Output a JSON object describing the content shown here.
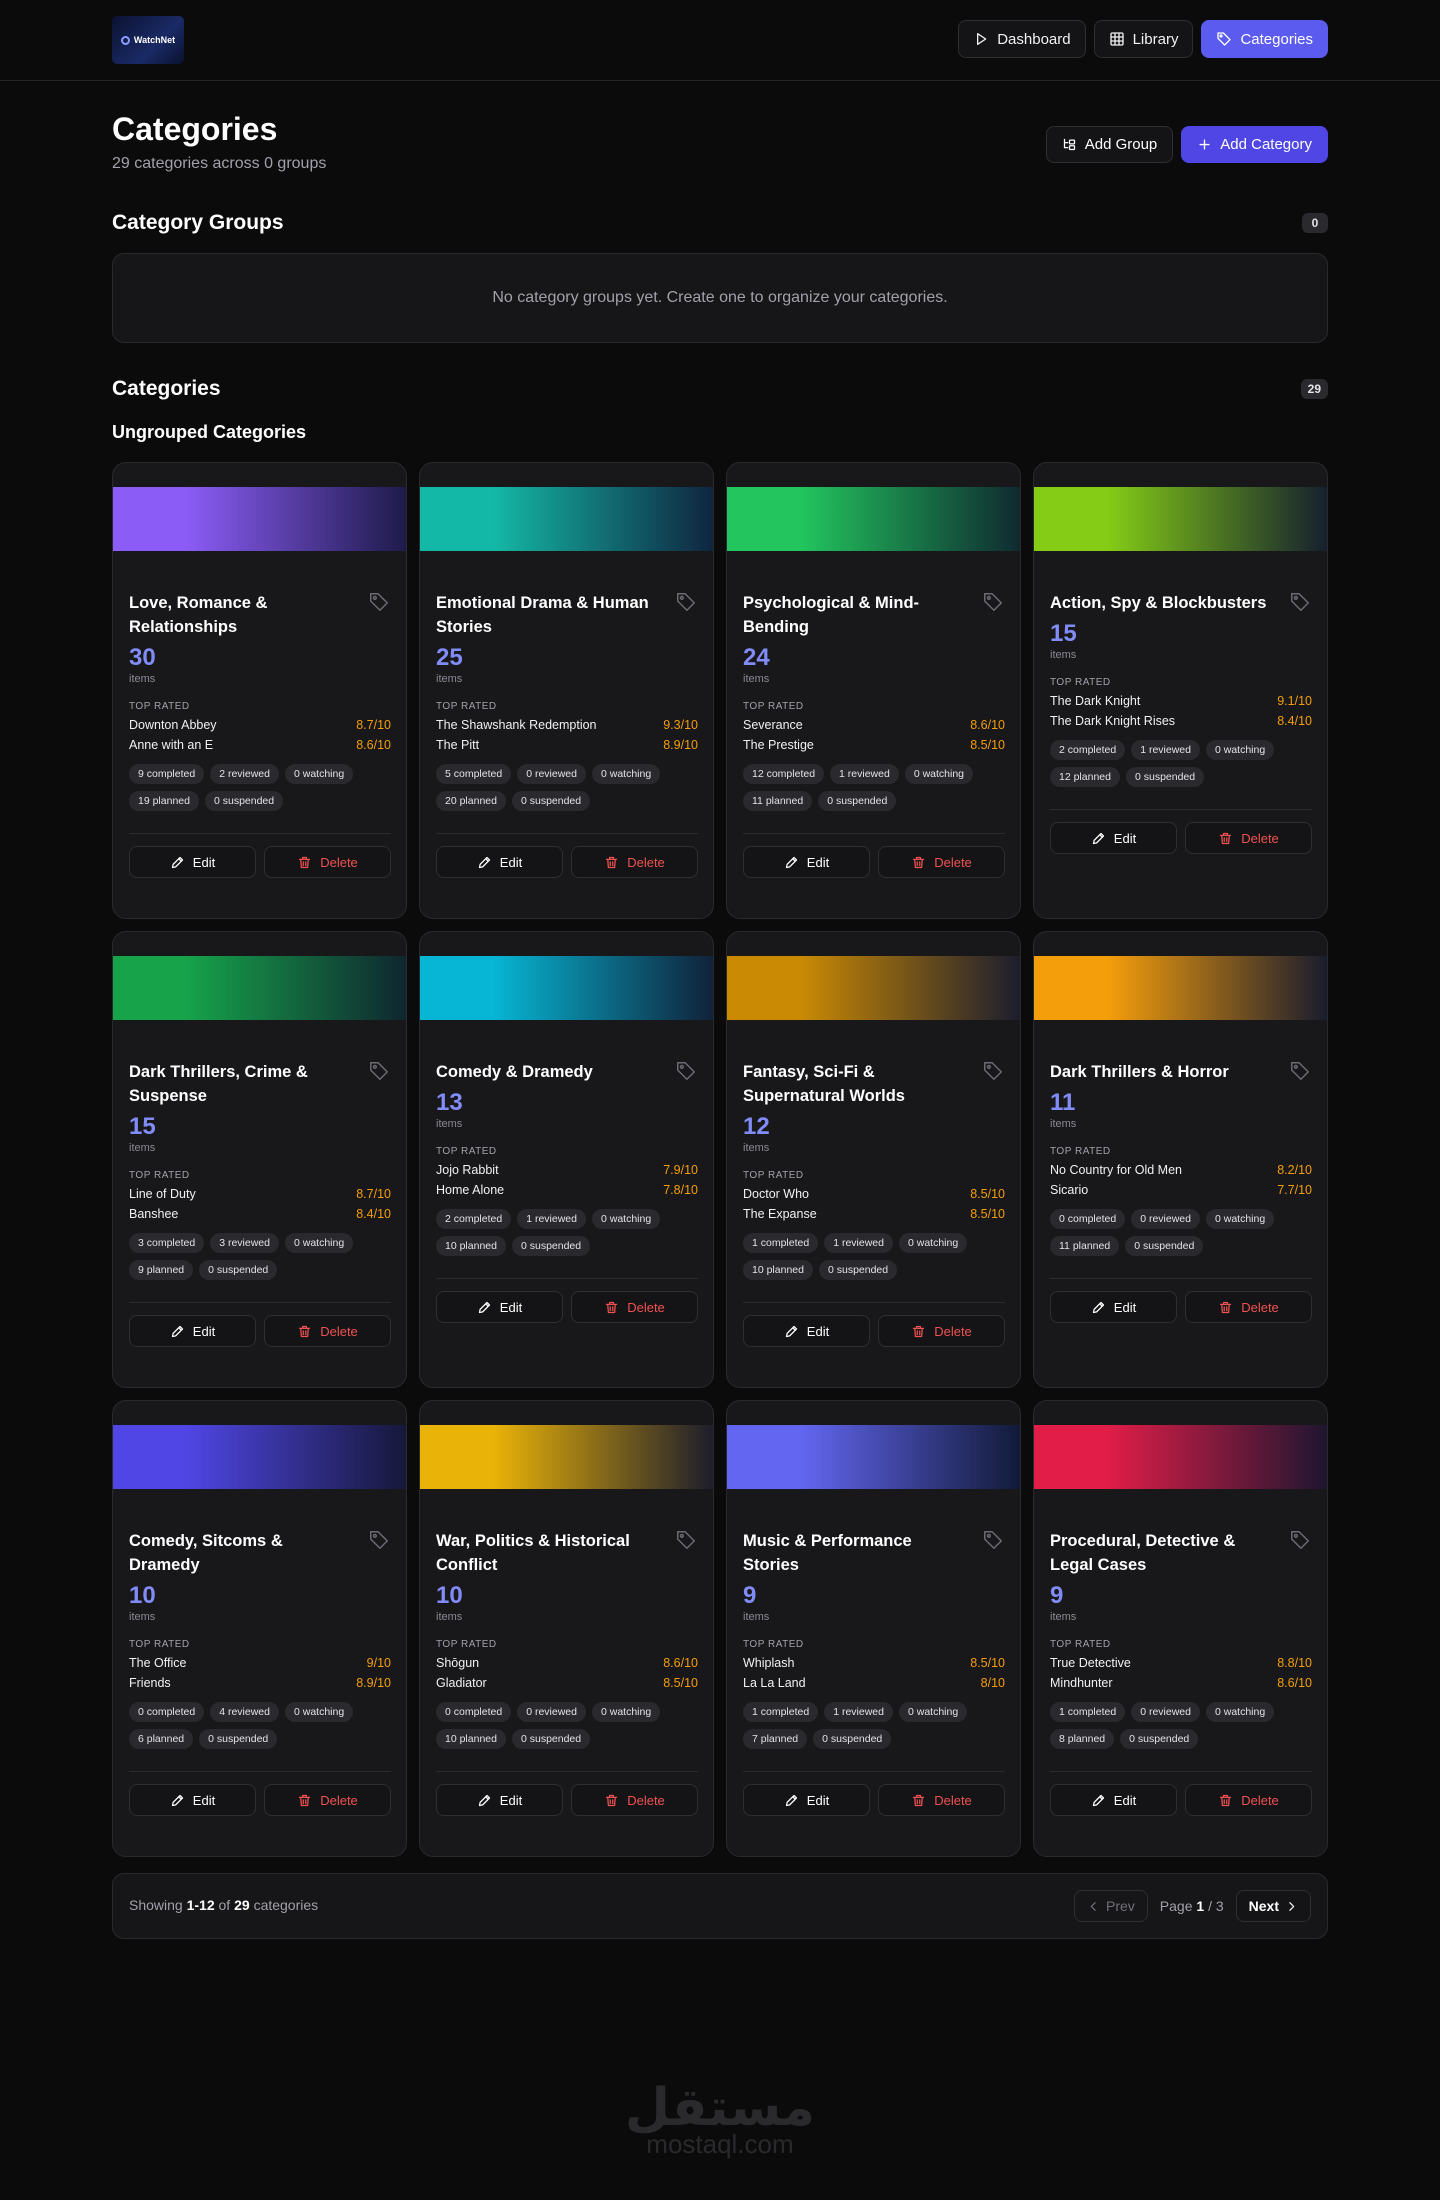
{
  "header": {
    "logo_text": "WatchNet",
    "nav": [
      {
        "label": "Dashboard",
        "icon": "play-icon",
        "active": false
      },
      {
        "label": "Library",
        "icon": "grid-icon",
        "active": false
      },
      {
        "label": "Categories",
        "icon": "tag-icon",
        "active": true
      }
    ]
  },
  "page": {
    "title": "Categories",
    "subtitle": "29 categories across 0 groups",
    "add_group_label": "Add Group",
    "add_category_label": "Add Category"
  },
  "groups": {
    "title": "Category Groups",
    "count": "0",
    "empty_text": "No category groups yet. Create one to organize your categories."
  },
  "categories": {
    "title": "Categories",
    "count": "29",
    "ungrouped_title": "Ungrouped Categories",
    "items_label": "items",
    "top_rated_label": "TOP RATED",
    "edit_label": "Edit",
    "delete_label": "Delete",
    "cards": [
      {
        "name": "Love, Romance & Relationships",
        "count": "30",
        "gradient": [
          "#8b5cf6",
          "#1e1b4b"
        ],
        "top": [
          {
            "title": "Downton Abbey",
            "rating": "8.7/10"
          },
          {
            "title": "Anne with an E",
            "rating": "8.6/10"
          }
        ],
        "badges": [
          "9 completed",
          "2 reviewed",
          "0 watching",
          "19 planned",
          "0 suspended"
        ]
      },
      {
        "name": "Emotional Drama & Human Stories",
        "count": "25",
        "gradient": [
          "#14b8a6",
          "#0f2540"
        ],
        "top": [
          {
            "title": "The Shawshank Redemption",
            "rating": "9.3/10"
          },
          {
            "title": "The Pitt",
            "rating": "8.9/10"
          }
        ],
        "badges": [
          "5 completed",
          "0 reviewed",
          "0 watching",
          "20 planned",
          "0 suspended"
        ]
      },
      {
        "name": "Psychological & Mind-Bending",
        "count": "24",
        "gradient": [
          "#22c55e",
          "#0f2a30"
        ],
        "top": [
          {
            "title": "Severance",
            "rating": "8.6/10"
          },
          {
            "title": "The Prestige",
            "rating": "8.5/10"
          }
        ],
        "badges": [
          "12 completed",
          "1 reviewed",
          "0 watching",
          "11 planned",
          "0 suspended"
        ]
      },
      {
        "name": "Action, Spy & Blockbusters",
        "count": "15",
        "gradient": [
          "#84cc16",
          "#15202e"
        ],
        "top": [
          {
            "title": "The Dark Knight",
            "rating": "9.1/10"
          },
          {
            "title": "The Dark Knight Rises",
            "rating": "8.4/10"
          }
        ],
        "badges": [
          "2 completed",
          "1 reviewed",
          "0 watching",
          "12 planned",
          "0 suspended"
        ]
      },
      {
        "name": "Dark Thrillers, Crime & Suspense",
        "count": "15",
        "gradient": [
          "#16a34a",
          "#0f2730"
        ],
        "top": [
          {
            "title": "Line of Duty",
            "rating": "8.7/10"
          },
          {
            "title": "Banshee",
            "rating": "8.4/10"
          }
        ],
        "badges": [
          "3 completed",
          "3 reviewed",
          "0 watching",
          "9 planned",
          "0 suspended"
        ]
      },
      {
        "name": "Comedy & Dramedy",
        "count": "13",
        "gradient": [
          "#06b6d4",
          "#10223a"
        ],
        "top": [
          {
            "title": "Jojo Rabbit",
            "rating": "7.9/10"
          },
          {
            "title": "Home Alone",
            "rating": "7.8/10"
          }
        ],
        "badges": [
          "2 completed",
          "1 reviewed",
          "0 watching",
          "10 planned",
          "0 suspended"
        ]
      },
      {
        "name": "Fantasy, Sci-Fi & Supernatural Worlds",
        "count": "12",
        "gradient": [
          "#ca8a04",
          "#1c1d2e"
        ],
        "top": [
          {
            "title": "Doctor Who",
            "rating": "8.5/10"
          },
          {
            "title": "The Expanse",
            "rating": "8.5/10"
          }
        ],
        "badges": [
          "1 completed",
          "1 reviewed",
          "0 watching",
          "10 planned",
          "0 suspended"
        ]
      },
      {
        "name": "Dark Thrillers & Horror",
        "count": "11",
        "gradient": [
          "#f59e0b",
          "#1a1c2e"
        ],
        "top": [
          {
            "title": "No Country for Old Men",
            "rating": "8.2/10"
          },
          {
            "title": "Sicario",
            "rating": "7.7/10"
          }
        ],
        "badges": [
          "0 completed",
          "0 reviewed",
          "0 watching",
          "11 planned",
          "0 suspended"
        ]
      },
      {
        "name": "Comedy, Sitcoms & Dramedy",
        "count": "10",
        "gradient": [
          "#4f46e5",
          "#16183a"
        ],
        "top": [
          {
            "title": "The Office",
            "rating": "9/10"
          },
          {
            "title": "Friends",
            "rating": "8.9/10"
          }
        ],
        "badges": [
          "0 completed",
          "4 reviewed",
          "0 watching",
          "6 planned",
          "0 suspended"
        ]
      },
      {
        "name": "War, Politics & Historical Conflict",
        "count": "10",
        "gradient": [
          "#eab308",
          "#1d1d2c"
        ],
        "top": [
          {
            "title": "Shōgun",
            "rating": "8.6/10"
          },
          {
            "title": "Gladiator",
            "rating": "8.5/10"
          }
        ],
        "badges": [
          "0 completed",
          "0 reviewed",
          "0 watching",
          "10 planned",
          "0 suspended"
        ]
      },
      {
        "name": "Music & Performance Stories",
        "count": "9",
        "gradient": [
          "#6366f1",
          "#111a38"
        ],
        "top": [
          {
            "title": "Whiplash",
            "rating": "8.5/10"
          },
          {
            "title": "La La Land",
            "rating": "8/10"
          }
        ],
        "badges": [
          "1 completed",
          "1 reviewed",
          "0 watching",
          "7 planned",
          "0 suspended"
        ]
      },
      {
        "name": "Procedural, Detective & Legal Cases",
        "count": "9",
        "gradient": [
          "#e11d48",
          "#1e1630"
        ],
        "top": [
          {
            "title": "True Detective",
            "rating": "8.8/10"
          },
          {
            "title": "Mindhunter",
            "rating": "8.6/10"
          }
        ],
        "badges": [
          "1 completed",
          "0 reviewed",
          "0 watching",
          "8 planned",
          "0 suspended"
        ]
      }
    ]
  },
  "pagination": {
    "showing_prefix": "Showing",
    "range": "1-12",
    "of_label": "of",
    "total": "29",
    "suffix": "categories",
    "prev_label": "Prev",
    "page_label": "Page",
    "current_page": "1",
    "page_separator": "/",
    "total_pages": "3",
    "next_label": "Next"
  },
  "watermark": {
    "arabic": "مستقل",
    "latin": "mostaql.com"
  }
}
